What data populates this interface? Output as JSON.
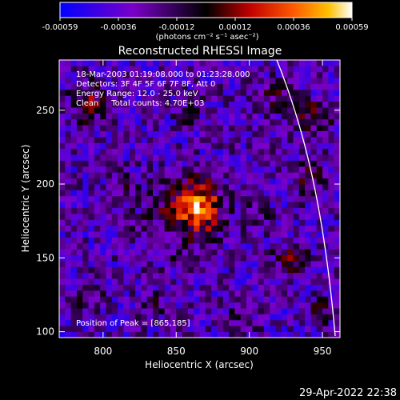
{
  "colorbar": {
    "ticks": [
      "-0.00059",
      "-0.00036",
      "-0.00012",
      "0.00012",
      "0.00036",
      "0.00059"
    ],
    "unit_label": "(photons cm⁻² s⁻¹ asec⁻²)"
  },
  "chart_data": {
    "type": "heatmap",
    "title": "Reconstructed RHESSI Image",
    "xlabel": "Heliocentric X (arcsec)",
    "ylabel": "Heliocentric Y (arcsec)",
    "xlim": [
      770,
      962
    ],
    "ylim": [
      96,
      284
    ],
    "xticks": [
      "800",
      "850",
      "900",
      "950"
    ],
    "yticks": [
      "100",
      "150",
      "200",
      "250"
    ],
    "annotations": [
      "18-Mar-2003 01:19:08.000 to 01:23:28.000",
      "Detectors: 3F 4F 5F 6F 7F 8F, Att 0",
      "Energy Range: 12.0 - 25.0 keV",
      "Clean     Total counts: 4.70E+03"
    ],
    "peak_label": "Position of Peak = [865,185]",
    "peak": [
      865,
      185
    ],
    "value_range": [
      -0.00059,
      0.00059
    ],
    "colormap": [
      "#0000ff",
      "#7a00c8",
      "#000000",
      "#c00000",
      "#ff5a00",
      "#ffc000",
      "#ffffff"
    ]
  },
  "footer": {
    "timestamp": "29-Apr-2022 22:38"
  }
}
